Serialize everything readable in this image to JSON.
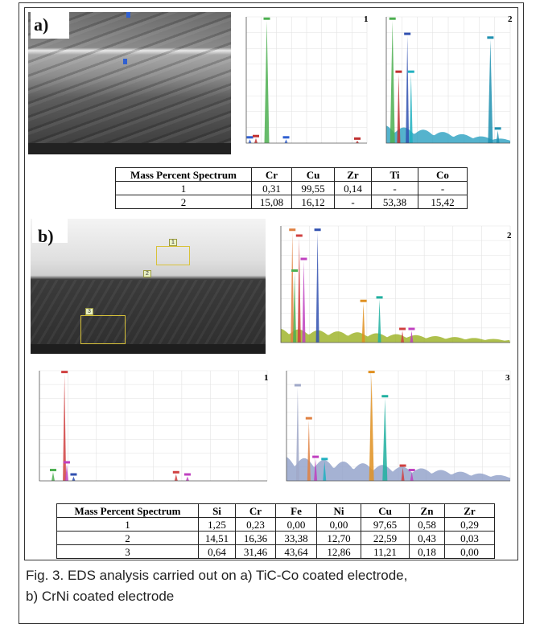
{
  "panels": [
    {
      "label": "a)",
      "spectra": [
        "1",
        "2"
      ],
      "table": {
        "header": [
          "Mass Percent Spectrum",
          "Cr",
          "Cu",
          "Zr",
          "Ti",
          "Co"
        ],
        "rows": [
          [
            "1",
            "0,31",
            "99,55",
            "0,14",
            "-",
            "-"
          ],
          [
            "2",
            "15,08",
            "16,12",
            "-",
            "53,38",
            "15,42"
          ]
        ]
      }
    },
    {
      "label": "b)",
      "spectra": [
        "2",
        "1",
        "3"
      ],
      "markers": [
        "1",
        "2",
        "3"
      ],
      "table": {
        "header": [
          "Mass Percent Spectrum",
          "Si",
          "Cr",
          "Fe",
          "Ni",
          "Cu",
          "Zn",
          "Zr"
        ],
        "rows": [
          [
            "1",
            "1,25",
            "0,23",
            "0,00",
            "0,00",
            "97,65",
            "0,58",
            "0,29"
          ],
          [
            "2",
            "14,51",
            "16,36",
            "33,38",
            "12,70",
            "22,59",
            "0,43",
            "0,03"
          ],
          [
            "3",
            "0,64",
            "31,46",
            "43,64",
            "12,86",
            "11,21",
            "0,18",
            "0,00"
          ]
        ]
      }
    }
  ],
  "caption": [
    "Fig. 3. EDS analysis carried out on a) TiC-Co coated electrode,",
    "b) CrNi coated electrode"
  ]
}
